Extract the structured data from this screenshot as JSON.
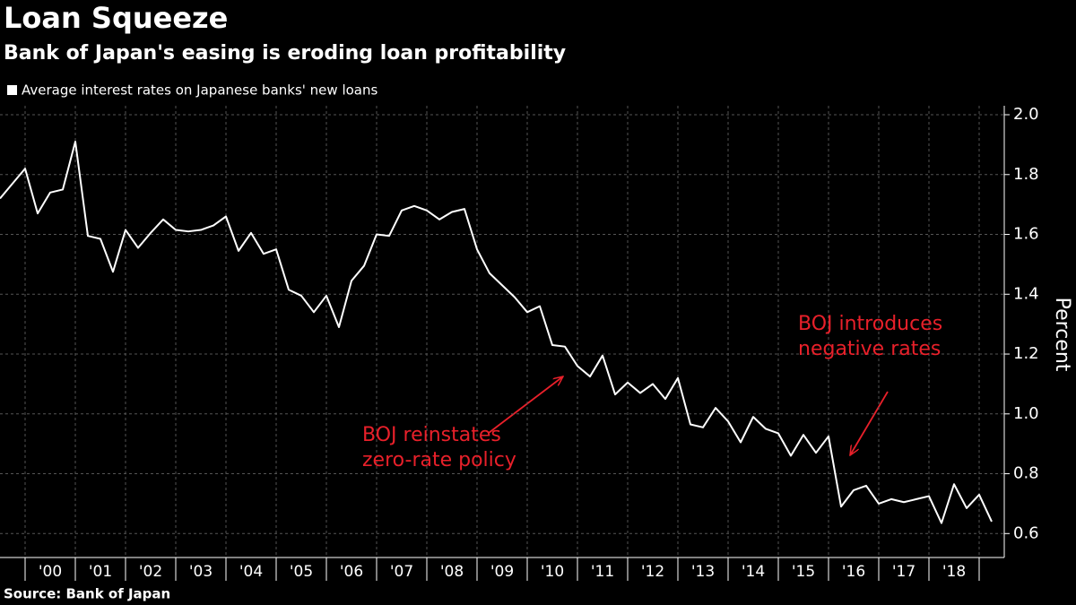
{
  "chart_data": {
    "type": "line",
    "title": "Loan Squeeze",
    "subtitle": "Bank of Japan's easing is eroding loan profitability",
    "source": "Source:  Bank of Japan",
    "y_label": "Percent",
    "legend": "top-left",
    "grid": true,
    "series": [
      {
        "name": "Average interest rates on Japanese banks' new loans",
        "color": "#ffffff",
        "x": [
          1999.5,
          1999.75,
          2000,
          2000.25,
          2000.5,
          2000.75,
          2001,
          2001.25,
          2001.5,
          2001.75,
          2002,
          2002.25,
          2002.5,
          2002.75,
          2003,
          2003.25,
          2003.5,
          2003.75,
          2004,
          2004.25,
          2004.5,
          2004.75,
          2005,
          2005.25,
          2005.5,
          2005.75,
          2006,
          2006.25,
          2006.5,
          2006.75,
          2007,
          2007.25,
          2007.5,
          2007.75,
          2008,
          2008.25,
          2008.5,
          2008.75,
          2009,
          2009.25,
          2009.5,
          2009.75,
          2010,
          2010.25,
          2010.5,
          2010.75,
          2011,
          2011.25,
          2011.5,
          2011.75,
          2012,
          2012.25,
          2012.5,
          2012.75,
          2013,
          2013.25,
          2013.5,
          2013.75,
          2014,
          2014.25,
          2014.5,
          2014.75,
          2015,
          2015.25,
          2015.5,
          2015.75,
          2016,
          2016.25,
          2016.5,
          2016.75,
          2017,
          2017.25,
          2017.5,
          2017.75,
          2018,
          2018.25,
          2018.5,
          2018.75,
          2019,
          2019.25
        ],
        "values": [
          1.72,
          1.77,
          1.82,
          1.67,
          1.74,
          1.75,
          1.91,
          1.595,
          1.585,
          1.475,
          1.615,
          1.555,
          1.605,
          1.65,
          1.615,
          1.61,
          1.615,
          1.63,
          1.66,
          1.545,
          1.605,
          1.535,
          1.55,
          1.415,
          1.395,
          1.34,
          1.395,
          1.29,
          1.445,
          1.495,
          1.6,
          1.595,
          1.68,
          1.695,
          1.68,
          1.65,
          1.675,
          1.685,
          1.55,
          1.47,
          1.43,
          1.39,
          1.34,
          1.36,
          1.23,
          1.225,
          1.16,
          1.125,
          1.195,
          1.065,
          1.105,
          1.07,
          1.1,
          1.05,
          1.12,
          0.965,
          0.955,
          1.02,
          0.975,
          0.905,
          0.99,
          0.95,
          0.935,
          0.86,
          0.93,
          0.87,
          0.925,
          0.69,
          0.745,
          0.76,
          0.7,
          0.715,
          0.705,
          0.715,
          0.725,
          0.635,
          0.765,
          0.685,
          0.73,
          0.64
        ]
      }
    ],
    "xlim": [
      1999.5,
      2019.5
    ],
    "xticks": [
      {
        "value": 2000.5,
        "label": "'00"
      },
      {
        "value": 2001.5,
        "label": "'01"
      },
      {
        "value": 2002.5,
        "label": "'02"
      },
      {
        "value": 2003.5,
        "label": "'03"
      },
      {
        "value": 2004.5,
        "label": "'04"
      },
      {
        "value": 2005.5,
        "label": "'05"
      },
      {
        "value": 2006.5,
        "label": "'06"
      },
      {
        "value": 2007.5,
        "label": "'07"
      },
      {
        "value": 2008.5,
        "label": "'08"
      },
      {
        "value": 2009.5,
        "label": "'09"
      },
      {
        "value": 2010.5,
        "label": "'10"
      },
      {
        "value": 2011.5,
        "label": "'11"
      },
      {
        "value": 2012.5,
        "label": "'12"
      },
      {
        "value": 2013.5,
        "label": "'13"
      },
      {
        "value": 2014.5,
        "label": "'14"
      },
      {
        "value": 2015.5,
        "label": "'15"
      },
      {
        "value": 2016.5,
        "label": "'16"
      },
      {
        "value": 2017.5,
        "label": "'17"
      },
      {
        "value": 2018.5,
        "label": "'18"
      }
    ],
    "x_grid": [
      2000,
      2001,
      2002,
      2003,
      2004,
      2005,
      2006,
      2007,
      2008,
      2009,
      2010,
      2011,
      2012,
      2013,
      2014,
      2015,
      2016,
      2017,
      2018,
      2019
    ],
    "ylim": [
      0.52,
      2.03
    ],
    "yticks": [
      0.6,
      0.8,
      {
        "value": 1.0,
        "label": "1.0"
      },
      1.2,
      1.4,
      1.6,
      1.8,
      {
        "value": 2.0,
        "label": "2.0"
      }
    ],
    "annotations": [
      {
        "lines": [
          "BOJ reinstates",
          "zero-rate policy"
        ],
        "color": "#e8202a"
      },
      {
        "lines": [
          "BOJ introduces",
          "negative rates"
        ],
        "color": "#e8202a"
      }
    ]
  }
}
